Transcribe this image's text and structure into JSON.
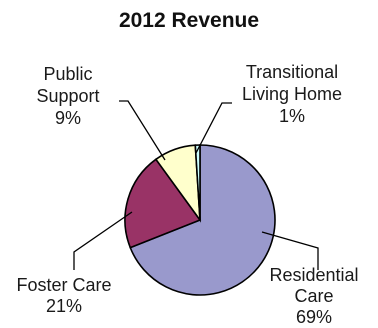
{
  "chart_data": {
    "type": "pie",
    "title": "2012 Revenue",
    "slices": [
      {
        "label_lines": [
          "Residential",
          "Care"
        ],
        "pct_label": "69%",
        "value": 69,
        "color": "#9999cc"
      },
      {
        "label_lines": [
          "Foster Care"
        ],
        "pct_label": "21%",
        "value": 21,
        "color": "#993366"
      },
      {
        "label_lines": [
          "Public",
          "Support"
        ],
        "pct_label": "9%",
        "value": 9,
        "color": "#ffffcc"
      },
      {
        "label_lines": [
          "Transitional",
          "Living Home"
        ],
        "pct_label": "1%",
        "value": 1,
        "color": "#ccffff"
      }
    ]
  }
}
